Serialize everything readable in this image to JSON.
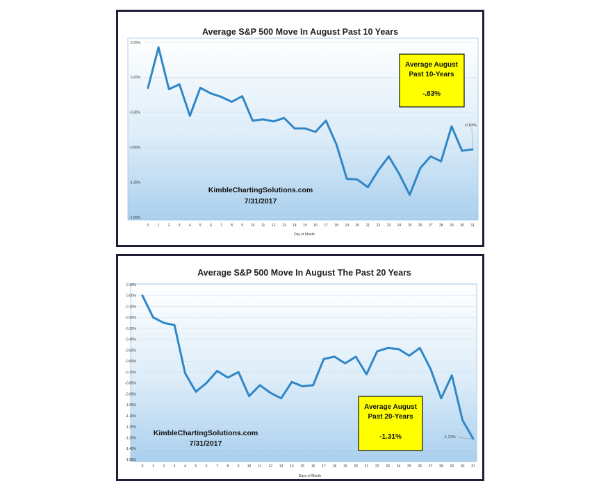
{
  "chart_data": [
    {
      "type": "line",
      "title": "Average S&P 500 Move In August Past 10 Years",
      "xlabel": "Day of Month",
      "ylabel": "",
      "x": [
        0,
        1,
        2,
        3,
        4,
        5,
        6,
        7,
        8,
        9,
        10,
        11,
        12,
        13,
        14,
        15,
        16,
        17,
        18,
        19,
        20,
        21,
        22,
        23,
        24,
        25,
        26,
        27,
        28,
        29,
        30,
        31
      ],
      "values": [
        0.05,
        0.63,
        0.03,
        0.1,
        -0.35,
        0.05,
        -0.03,
        -0.08,
        -0.15,
        -0.07,
        -0.42,
        -0.4,
        -0.43,
        -0.38,
        -0.53,
        -0.53,
        -0.58,
        -0.42,
        -0.76,
        -1.25,
        -1.26,
        -1.37,
        -1.13,
        -0.93,
        -1.18,
        -1.48,
        -1.1,
        -0.93,
        -1.0,
        -0.5,
        -0.85,
        -0.83
      ],
      "ylim": [
        -1.8,
        0.7
      ],
      "yticks": [
        "0.70%",
        "0.20%",
        "-0.30%",
        "-0.80%",
        "-1.30%",
        "-1.80%"
      ],
      "grid": true,
      "end_label": "-0.83%",
      "watermark": [
        "KimbleChartingSolutions.com",
        "7/31/2017"
      ],
      "callout": [
        "Average August",
        "Past 10-Years",
        "-.83%"
      ],
      "colors": {
        "line": "#2f86c7",
        "callout_fill": "#ffff00",
        "border": "#1c1f36"
      }
    },
    {
      "type": "line",
      "title": "Average S&P 500 Move In August The Past 20 Years",
      "xlabel": "Days of Month",
      "ylabel": "",
      "x": [
        0,
        1,
        2,
        3,
        4,
        5,
        6,
        7,
        8,
        9,
        10,
        11,
        12,
        13,
        14,
        15,
        16,
        17,
        18,
        19,
        20,
        21,
        22,
        23,
        24,
        25,
        26,
        27,
        28,
        29,
        30,
        31
      ],
      "values": [
        0.0,
        -0.2,
        -0.25,
        -0.27,
        -0.71,
        -0.88,
        -0.8,
        -0.69,
        -0.75,
        -0.7,
        -0.92,
        -0.82,
        -0.89,
        -0.94,
        -0.79,
        -0.83,
        -0.82,
        -0.58,
        -0.56,
        -0.62,
        -0.56,
        -0.72,
        -0.51,
        -0.48,
        -0.49,
        -0.55,
        -0.48,
        -0.67,
        -0.94,
        -0.73,
        -1.14,
        -1.31
      ],
      "ylim": [
        -1.5,
        0.1
      ],
      "yticks": [
        "0.10%",
        "0.00%",
        "-0.10%",
        "-0.20%",
        "-0.30%",
        "-0.40%",
        "-0.50%",
        "-0.60%",
        "-0.70%",
        "-0.80%",
        "-0.90%",
        "-1.00%",
        "-1.10%",
        "-1.20%",
        "-1.30%",
        "-1.40%",
        "-1.50%"
      ],
      "grid": true,
      "end_label": "-1.31%",
      "watermark": [
        "KimbleChartingSolutions.com",
        "7/31/2017"
      ],
      "callout": [
        "Average August",
        "Past 20-Years",
        "-1.31%"
      ],
      "colors": {
        "line": "#2f86c7",
        "callout_fill": "#ffff00",
        "border": "#1c1f36"
      }
    }
  ]
}
